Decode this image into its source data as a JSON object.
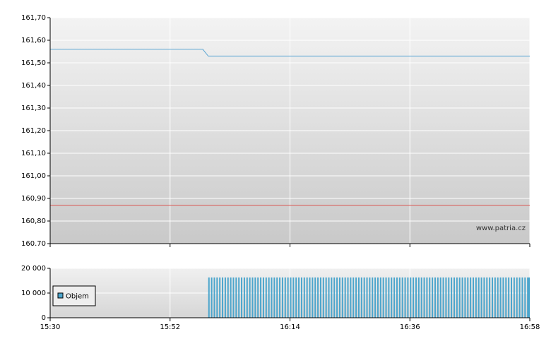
{
  "chart_data": [
    {
      "type": "line",
      "ylim": [
        160.7,
        161.7
      ],
      "yticks": [
        {
          "value": 160.7,
          "label": "160.70"
        },
        {
          "value": 160.8,
          "label": "160,80"
        },
        {
          "value": 160.9,
          "label": "160,90"
        },
        {
          "value": 161.0,
          "label": "161,00"
        },
        {
          "value": 161.1,
          "label": "161,10"
        },
        {
          "value": 161.2,
          "label": "161,20"
        },
        {
          "value": 161.3,
          "label": "161,30"
        },
        {
          "value": 161.4,
          "label": "161,40"
        },
        {
          "value": 161.5,
          "label": "161,50"
        },
        {
          "value": 161.6,
          "label": "161,60"
        },
        {
          "value": 161.7,
          "label": "161,70"
        }
      ],
      "xlim": [
        930,
        1018
      ],
      "grid": true,
      "annotation": "www.patria.cz",
      "series": [
        {
          "color": "#5aa5d2",
          "x": [
            930,
            958,
            959,
            1018
          ],
          "values": [
            161.56,
            161.56,
            161.53,
            161.53
          ]
        },
        {
          "color": "#d9534f",
          "x": [
            930,
            1018
          ],
          "values": [
            160.87,
            160.87
          ]
        }
      ]
    },
    {
      "type": "bar",
      "ylim": [
        0,
        20000
      ],
      "yticks": [
        0,
        {
          "value": 10000,
          "label": "10 000"
        },
        {
          "value": 20000,
          "label": "20 000"
        }
      ],
      "xlim": [
        930,
        1018
      ],
      "xticks": [
        {
          "value": 930,
          "label": "15:30"
        },
        {
          "value": 952,
          "label": "15:52"
        },
        {
          "value": 974,
          "label": "16:14"
        },
        {
          "value": 996,
          "label": "16:36"
        },
        {
          "value": 1018,
          "label": "16:58"
        }
      ],
      "grid": true,
      "legend": "upper left",
      "series": [
        {
          "name": "Objem",
          "color": "#4ba5cc",
          "x": [
            959,
            959.5,
            960,
            960.5,
            961,
            961.5,
            962,
            962.5,
            963,
            963.5,
            964,
            964.5,
            965,
            965.5,
            966,
            966.5,
            967,
            967.5,
            968,
            968.5,
            969,
            969.5,
            970,
            970.5,
            971,
            971.5,
            972,
            972.5,
            973,
            973.5,
            974,
            974.5,
            975,
            975.5,
            976,
            976.5,
            977,
            977.5,
            978,
            978.5,
            979,
            979.5,
            980,
            980.5,
            981,
            981.5,
            982,
            982.5,
            983,
            983.5,
            984,
            984.5,
            985,
            985.5,
            986,
            986.5,
            987,
            987.5,
            988,
            988.5,
            989,
            989.5,
            990,
            990.5,
            991,
            991.5,
            992,
            992.5,
            993,
            993.5,
            994,
            994.5,
            995,
            995.5,
            996,
            996.5,
            997,
            997.5,
            998,
            998.5,
            999,
            999.5,
            1000,
            1000.5,
            1001,
            1001.5,
            1002,
            1002.5,
            1003,
            1003.5,
            1004,
            1004.5,
            1005,
            1005.5,
            1006,
            1006.5,
            1007,
            1007.5,
            1008,
            1008.5,
            1009,
            1009.5,
            1010,
            1010.5,
            1011,
            1011.5,
            1012,
            1012.5,
            1013,
            1013.5,
            1014,
            1014.5,
            1015,
            1015.5,
            1016,
            1016.5,
            1017,
            1017.5,
            1018
          ],
          "values": [
            16300,
            16300,
            16300,
            16300,
            16300,
            16300,
            16300,
            16300,
            16300,
            16300,
            16300,
            16300,
            16300,
            16300,
            16300,
            16300,
            16300,
            16300,
            16300,
            16300,
            16300,
            16300,
            16300,
            16300,
            16300,
            16300,
            16300,
            16300,
            16300,
            16300,
            16300,
            16300,
            16300,
            16300,
            16300,
            16300,
            16300,
            16300,
            16300,
            16300,
            16300,
            16300,
            16300,
            16300,
            16300,
            16300,
            16300,
            16300,
            16300,
            16300,
            16300,
            16300,
            16300,
            16300,
            16300,
            16300,
            16300,
            16300,
            16300,
            16300,
            16300,
            16300,
            16300,
            16300,
            16300,
            16300,
            16300,
            16300,
            16300,
            16300,
            16300,
            16300,
            16300,
            16300,
            16300,
            16300,
            16300,
            16300,
            16300,
            16300,
            16300,
            16300,
            16300,
            16300,
            16300,
            16300,
            16300,
            16300,
            16300,
            16300,
            16300,
            16300,
            16300,
            16300,
            16300,
            16300,
            16300,
            16300,
            16300,
            16300,
            16300,
            16300,
            16300,
            16300,
            16300,
            16300,
            16300,
            16300,
            16300,
            16300,
            16300,
            16300,
            16300,
            16300,
            16300,
            16300,
            16300,
            16300,
            16300
          ]
        }
      ]
    }
  ]
}
